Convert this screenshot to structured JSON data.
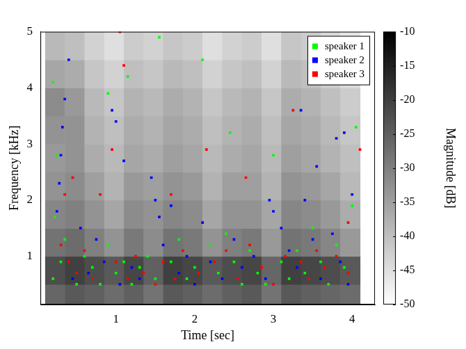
{
  "chart_data": {
    "type": "scatter",
    "x_label": "Time [sec]",
    "y_label": "Frequency [kHz]",
    "xlim": [
      0.04,
      4.29
    ],
    "xticks": [
      1,
      2,
      3,
      4
    ],
    "ylim": [
      0.14,
      5
    ],
    "yticks": [
      1,
      2,
      3,
      4,
      5
    ],
    "grid": false,
    "legend": "upper right",
    "marker": "square",
    "series": [
      {
        "name": "speaker 1",
        "color": "#00ff00",
        "values": [
          [
            0.2,
            0.6
          ],
          [
            0.3,
            0.9
          ],
          [
            0.35,
            1.3
          ],
          [
            0.22,
            1.7
          ],
          [
            0.25,
            2.8
          ],
          [
            0.2,
            4.1
          ],
          [
            0.5,
            0.5
          ],
          [
            0.6,
            1.0
          ],
          [
            0.7,
            0.8
          ],
          [
            0.8,
            0.5
          ],
          [
            0.9,
            1.2
          ],
          [
            1.0,
            0.7
          ],
          [
            1.1,
            0.9
          ],
          [
            1.2,
            0.5
          ],
          [
            1.3,
            0.8
          ],
          [
            1.4,
            1.0
          ],
          [
            1.5,
            0.6
          ],
          [
            1.55,
            4.9
          ],
          [
            1.7,
            0.9
          ],
          [
            1.8,
            1.3
          ],
          [
            1.9,
            0.6
          ],
          [
            2.0,
            0.8
          ],
          [
            2.1,
            4.5
          ],
          [
            2.2,
            1.2
          ],
          [
            2.3,
            0.7
          ],
          [
            2.4,
            1.4
          ],
          [
            2.5,
            0.9
          ],
          [
            2.6,
            0.5
          ],
          [
            2.7,
            1.1
          ],
          [
            2.8,
            0.7
          ],
          [
            2.9,
            0.5
          ],
          [
            3.0,
            2.8
          ],
          [
            3.1,
            0.9
          ],
          [
            3.2,
            0.6
          ],
          [
            3.3,
            1.1
          ],
          [
            3.4,
            0.7
          ],
          [
            3.5,
            1.5
          ],
          [
            3.6,
            0.9
          ],
          [
            3.7,
            0.5
          ],
          [
            3.8,
            1.2
          ],
          [
            3.9,
            0.8
          ],
          [
            4.0,
            1.9
          ],
          [
            4.05,
            3.3
          ],
          [
            0.9,
            3.9
          ],
          [
            2.45,
            3.2
          ],
          [
            1.15,
            4.2
          ]
        ]
      },
      {
        "name": "speaker 2",
        "color": "#0000ff",
        "values": [
          [
            0.25,
            1.8
          ],
          [
            0.28,
            2.3
          ],
          [
            0.3,
            2.8
          ],
          [
            0.32,
            3.3
          ],
          [
            0.35,
            3.8
          ],
          [
            0.4,
            4.5
          ],
          [
            0.45,
            0.6
          ],
          [
            0.55,
            1.5
          ],
          [
            0.65,
            0.7
          ],
          [
            0.75,
            1.3
          ],
          [
            0.85,
            0.9
          ],
          [
            0.95,
            3.6
          ],
          [
            1.0,
            3.4
          ],
          [
            1.1,
            2.7
          ],
          [
            1.05,
            0.5
          ],
          [
            1.2,
            0.8
          ],
          [
            1.3,
            0.6
          ],
          [
            1.45,
            2.4
          ],
          [
            1.5,
            2.0
          ],
          [
            1.55,
            1.7
          ],
          [
            1.6,
            1.2
          ],
          [
            1.7,
            1.9
          ],
          [
            1.8,
            0.7
          ],
          [
            1.9,
            1.0
          ],
          [
            2.0,
            0.5
          ],
          [
            2.1,
            1.6
          ],
          [
            2.2,
            0.9
          ],
          [
            2.35,
            0.6
          ],
          [
            2.5,
            1.3
          ],
          [
            2.6,
            0.8
          ],
          [
            2.75,
            1.0
          ],
          [
            2.9,
            0.6
          ],
          [
            2.95,
            2.0
          ],
          [
            3.0,
            1.8
          ],
          [
            3.1,
            1.5
          ],
          [
            3.2,
            1.1
          ],
          [
            3.3,
            0.8
          ],
          [
            3.4,
            2.0
          ],
          [
            3.5,
            1.3
          ],
          [
            3.6,
            0.6
          ],
          [
            3.75,
            1.4
          ],
          [
            3.85,
            0.9
          ],
          [
            3.95,
            0.5
          ],
          [
            3.55,
            2.6
          ],
          [
            3.8,
            3.1
          ],
          [
            4.0,
            2.1
          ],
          [
            3.9,
            3.2
          ],
          [
            3.35,
            3.6
          ]
        ]
      },
      {
        "name": "speaker 3",
        "color": "#ff0000",
        "values": [
          [
            0.3,
            1.2
          ],
          [
            0.35,
            2.1
          ],
          [
            0.45,
            2.4
          ],
          [
            0.4,
            0.9
          ],
          [
            0.5,
            0.7
          ],
          [
            0.6,
            1.1
          ],
          [
            0.7,
            0.6
          ],
          [
            0.8,
            2.1
          ],
          [
            0.95,
            2.9
          ],
          [
            1.05,
            5.0
          ],
          [
            1.1,
            4.4
          ],
          [
            1.0,
            0.9
          ],
          [
            1.15,
            0.6
          ],
          [
            1.25,
            1.0
          ],
          [
            1.35,
            0.7
          ],
          [
            1.5,
            0.5
          ],
          [
            1.6,
            0.9
          ],
          [
            1.7,
            2.1
          ],
          [
            1.75,
            0.6
          ],
          [
            1.85,
            1.1
          ],
          [
            2.05,
            0.7
          ],
          [
            2.15,
            2.9
          ],
          [
            2.25,
            0.9
          ],
          [
            2.4,
            1.1
          ],
          [
            2.55,
            0.6
          ],
          [
            2.65,
            2.4
          ],
          [
            2.7,
            1.2
          ],
          [
            2.85,
            0.8
          ],
          [
            3.0,
            0.5
          ],
          [
            3.15,
            1.0
          ],
          [
            3.25,
            3.6
          ],
          [
            3.35,
            0.9
          ],
          [
            3.45,
            0.6
          ],
          [
            3.55,
            1.1
          ],
          [
            3.65,
            0.8
          ],
          [
            3.8,
            1.0
          ],
          [
            3.95,
            0.7
          ],
          [
            4.1,
            2.9
          ],
          [
            3.95,
            1.6
          ]
        ]
      }
    ],
    "spectrogram": {
      "x_edges": [
        0.1,
        0.35,
        0.6,
        0.85,
        1.1,
        1.35,
        1.6,
        1.85,
        2.1,
        2.35,
        2.6,
        2.85,
        3.1,
        3.35,
        3.6,
        3.85,
        4.1
      ],
      "y_edges": [
        0.1,
        0.5,
        1,
        1.5,
        2,
        2.5,
        3,
        3.5,
        4,
        4.5,
        5
      ],
      "values": [
        [
          -26,
          -24,
          -25,
          -27,
          -25,
          -28,
          -24,
          -25,
          -27,
          -25,
          -24,
          -28,
          -24,
          -25,
          -26,
          -27
        ],
        [
          -22,
          -20,
          -22,
          -24,
          -21,
          -25,
          -20,
          -21,
          -24,
          -22,
          -21,
          -26,
          -20,
          -21,
          -22,
          -24
        ],
        [
          -28,
          -27,
          -30,
          -33,
          -29,
          -32,
          -28,
          -29,
          -33,
          -30,
          -29,
          -34,
          -28,
          -29,
          -31,
          -34
        ],
        [
          -31,
          -30,
          -33,
          -36,
          -32,
          -33,
          -31,
          -32,
          -36,
          -33,
          -33,
          -36,
          -31,
          -32,
          -34,
          -37
        ],
        [
          -33,
          -32,
          -35,
          -38,
          -34,
          -35,
          -33,
          -34,
          -38,
          -35,
          -35,
          -38,
          -33,
          -34,
          -36,
          -39
        ],
        [
          -34,
          -33,
          -37,
          -39,
          -36,
          -37,
          -35,
          -36,
          -39,
          -37,
          -36,
          -39,
          -35,
          -36,
          -38,
          -40
        ],
        [
          -33,
          -33,
          -38,
          -40,
          -37,
          -38,
          -36,
          -37,
          -40,
          -38,
          -37,
          -40,
          -36,
          -37,
          -39,
          -41
        ],
        [
          -32,
          -34,
          -39,
          -41,
          -38,
          -39,
          -37,
          -38,
          -41,
          -39,
          -38,
          -41,
          -37,
          -38,
          -40,
          -42
        ],
        [
          -36,
          -37,
          -41,
          -43,
          -40,
          -41,
          -39,
          -40,
          -43,
          -41,
          -40,
          -43,
          -39,
          -40,
          -42,
          -44
        ],
        [
          -39,
          -40,
          -43,
          -45,
          -42,
          -43,
          -41,
          -42,
          -45,
          -43,
          -42,
          -45,
          -41,
          -42,
          -44,
          -46
        ]
      ]
    },
    "colorbar": {
      "label": "Magnitude [dB]",
      "lim": [
        -50,
        -10
      ],
      "ticks": [
        -50,
        -45,
        -40,
        -35,
        -30,
        -25,
        -20,
        -15,
        -10
      ]
    }
  }
}
